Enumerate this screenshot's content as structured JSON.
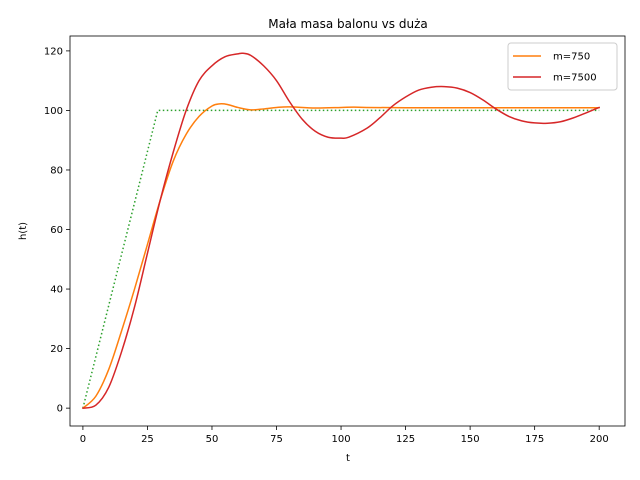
{
  "chart_data": {
    "type": "line",
    "title": "Mała masa balonu vs duża",
    "xlabel": "t",
    "ylabel": "h(t)",
    "xlim": [
      -5,
      210
    ],
    "ylim": [
      -6,
      125
    ],
    "xticks": [
      0,
      25,
      50,
      75,
      100,
      125,
      150,
      175,
      200
    ],
    "yticks": [
      0,
      20,
      40,
      60,
      80,
      100,
      120
    ],
    "grid": false,
    "legend_position": "top-right",
    "series": [
      {
        "name": "",
        "color": "#2ca02c",
        "style": "dotted",
        "in_legend": false,
        "x": [
          0,
          29,
          200
        ],
        "y": [
          0,
          100,
          100
        ]
      },
      {
        "name": "m=750",
        "color": "#ff7f0e",
        "style": "solid",
        "in_legend": true,
        "x": [
          0,
          5,
          10,
          15,
          20,
          25,
          30,
          35,
          40,
          45,
          50,
          53,
          56,
          60,
          65,
          70,
          75,
          80,
          90,
          100,
          105,
          110,
          125,
          150,
          175,
          200
        ],
        "y": [
          0,
          4,
          13,
          26,
          40,
          55,
          70,
          83,
          92,
          98,
          101.5,
          102.2,
          102,
          101,
          100.2,
          100.5,
          101,
          101.2,
          100.8,
          101,
          101.1,
          101,
          100.9,
          100.9,
          100.9,
          100.9
        ]
      },
      {
        "name": "m=7500",
        "color": "#d62728",
        "style": "solid",
        "in_legend": true,
        "x": [
          0,
          5,
          10,
          15,
          20,
          25,
          30,
          35,
          40,
          45,
          50,
          55,
          60,
          62,
          65,
          70,
          75,
          80,
          85,
          90,
          95,
          100,
          103,
          110,
          115,
          120,
          125,
          130,
          135,
          140,
          145,
          150,
          155,
          160,
          165,
          170,
          175,
          180,
          185,
          190,
          195,
          200
        ],
        "y": [
          0,
          1,
          7,
          19,
          34,
          52,
          70,
          86,
          100,
          110,
          115,
          118,
          119,
          119.2,
          118.5,
          115,
          110,
          103,
          97,
          93,
          91,
          90.7,
          91,
          94,
          97.5,
          101.5,
          104.5,
          106.8,
          107.8,
          108,
          107.5,
          106,
          103.5,
          100.5,
          98,
          96.5,
          95.8,
          95.7,
          96.2,
          97.5,
          99.2,
          101
        ]
      }
    ]
  }
}
